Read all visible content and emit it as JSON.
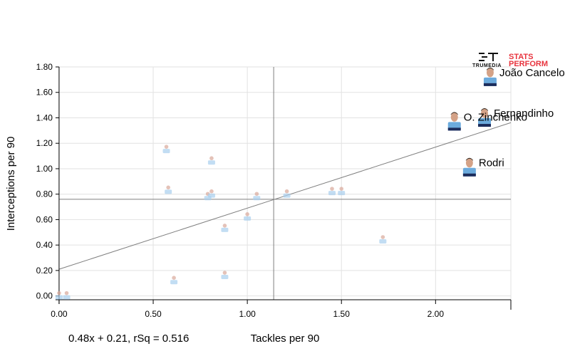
{
  "chart_data": {
    "type": "scatter",
    "xlabel": "Tackles per 90",
    "ylabel": "Interceptions per 90",
    "xlim": [
      -0.03,
      2.4
    ],
    "ylim": [
      -0.03,
      1.8
    ],
    "x_ticks": [
      "0.00",
      "0.50",
      "1.00",
      "1.50",
      "2.00"
    ],
    "y_ticks": [
      "0.00",
      "0.20",
      "0.40",
      "0.60",
      "0.80",
      "1.00",
      "1.20",
      "1.40",
      "1.60",
      "1.80"
    ],
    "x_tick_values": [
      0,
      0.5,
      1.0,
      1.5,
      2.0
    ],
    "y_tick_values": [
      0,
      0.2,
      0.4,
      0.6,
      0.8,
      1.0,
      1.2,
      1.4,
      1.6,
      1.8
    ],
    "grid": true,
    "mean_x": 1.14,
    "mean_y": 0.76,
    "trendline": {
      "slope": 0.48,
      "intercept": 0.21,
      "label": "0.48x + 0.21, rSq = 0.516"
    },
    "points": [
      {
        "label": "João Cancelo",
        "x": 2.29,
        "y": 1.7,
        "featured": true
      },
      {
        "label": "Fernandinho",
        "x": 2.26,
        "y": 1.38,
        "featured": true
      },
      {
        "label": "O. Zinchenko",
        "x": 2.1,
        "y": 1.35,
        "featured": true
      },
      {
        "label": "Rodri",
        "x": 2.18,
        "y": 0.99,
        "featured": true
      },
      {
        "label": "",
        "x": 0.57,
        "y": 1.15,
        "featured": false
      },
      {
        "label": "",
        "x": 0.81,
        "y": 1.06,
        "featured": false
      },
      {
        "label": "",
        "x": 0.58,
        "y": 0.83,
        "featured": false
      },
      {
        "label": "",
        "x": 0.79,
        "y": 0.78,
        "featured": false
      },
      {
        "label": "",
        "x": 0.81,
        "y": 0.8,
        "featured": false
      },
      {
        "label": "",
        "x": 1.05,
        "y": 0.78,
        "featured": false
      },
      {
        "label": "",
        "x": 1.21,
        "y": 0.8,
        "featured": false
      },
      {
        "label": "",
        "x": 1.45,
        "y": 0.82,
        "featured": false
      },
      {
        "label": "",
        "x": 1.5,
        "y": 0.82,
        "featured": false
      },
      {
        "label": "",
        "x": 0.88,
        "y": 0.53,
        "featured": false
      },
      {
        "label": "",
        "x": 1.0,
        "y": 0.62,
        "featured": false
      },
      {
        "label": "",
        "x": 1.72,
        "y": 0.44,
        "featured": false
      },
      {
        "label": "",
        "x": 0.61,
        "y": 0.12,
        "featured": false
      },
      {
        "label": "",
        "x": 0.88,
        "y": 0.16,
        "featured": false
      },
      {
        "label": "",
        "x": 0.0,
        "y": 0.0,
        "featured": false
      },
      {
        "label": "",
        "x": 0.04,
        "y": 0.0,
        "featured": false
      }
    ]
  },
  "brand": {
    "logo_left": "TRUMEDIA",
    "logo_right_line1": "STATS",
    "logo_right_line2": "PERFORM",
    "accent": "#e8343e"
  },
  "colors": {
    "grid": "#e2e2e2",
    "axis": "#000000",
    "ref_line": "#7f7f7f",
    "shirt": "#6cabdd"
  }
}
